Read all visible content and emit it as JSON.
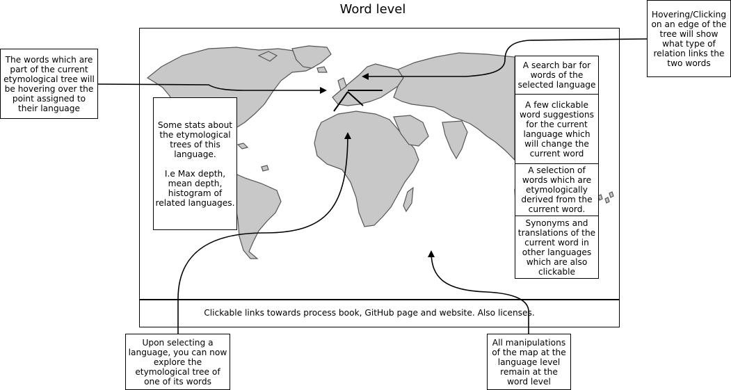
{
  "title": "Word level",
  "boxes": {
    "words_hover": "The words which are part of the current etymological tree will be hovering over the point assigned to their language",
    "stats": "Some stats about the etymological trees of this language.\n\nI.e Max depth, mean depth, histogram of related languages.",
    "edge_hover": "Hovering/Clicking on an edge of the tree will show what type of relation links the two words",
    "search_bar": "A search bar for words of the selected language",
    "suggestions": "A few clickable word suggestions for the current language which will change the current word",
    "derived": "A selection of words which are etymologically derived from the current word.",
    "synonyms": "Synonyms and translations of the current word in other languages which are also clickable",
    "select_language": "Upon selecting a language, you can now explore the etymological tree of one of its words",
    "manipulations": "All manipulations of the map at the language level remain at the word level"
  },
  "footer": "Clickable links towards process book, GitHub page and website. Also licenses.",
  "colors": {
    "land": "#c8c8c8",
    "outline": "#555555",
    "line": "#000000"
  }
}
